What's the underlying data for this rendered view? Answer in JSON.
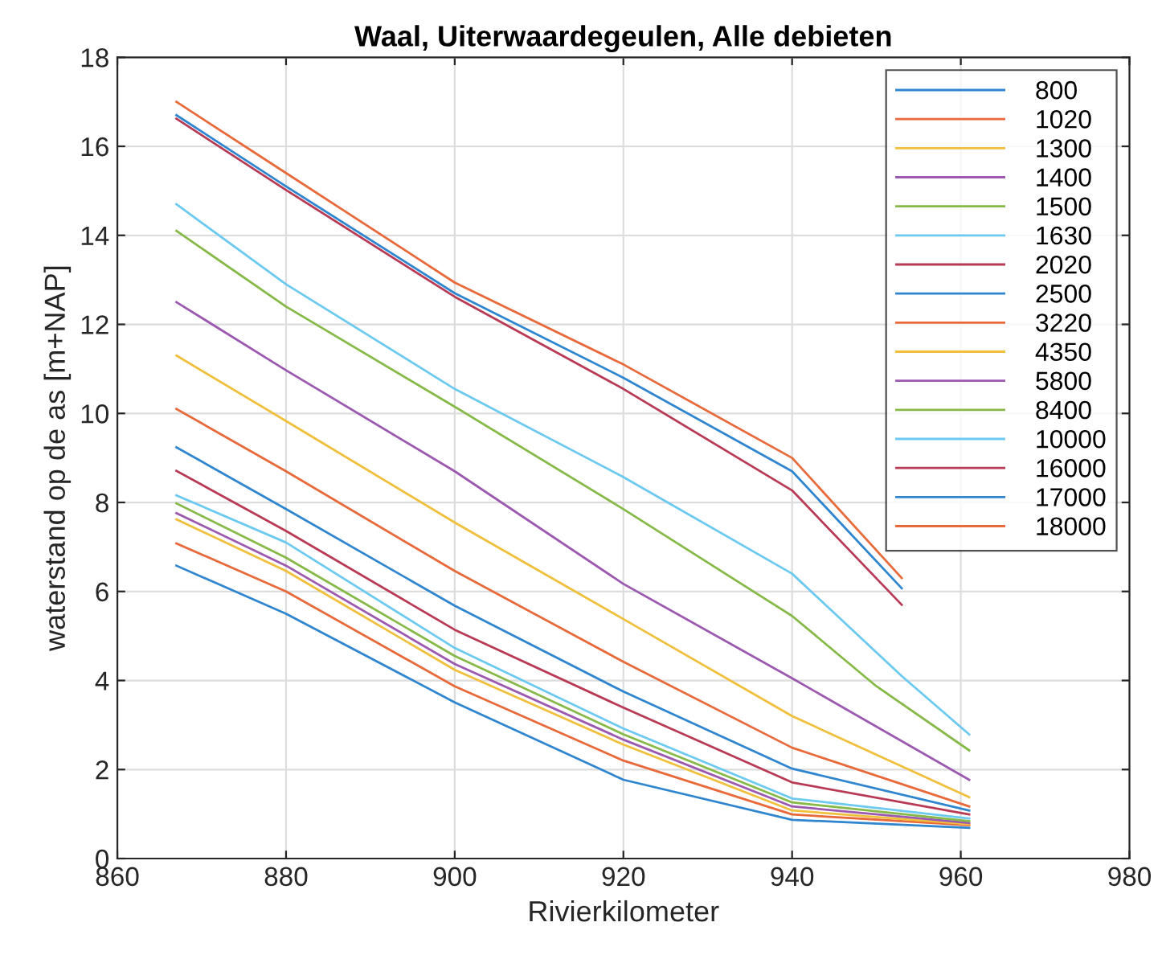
{
  "chart_data": {
    "type": "line",
    "title": "Waal, Uiterwaardegeulen, Alle debieten",
    "xlabel": "Rivierkilometer",
    "ylabel": "waterstand op de as [m+NAP]",
    "xlim": [
      860,
      980
    ],
    "xticks": [
      860,
      880,
      900,
      920,
      940,
      960,
      980
    ],
    "ylim": [
      0,
      18
    ],
    "yticks": [
      0,
      2,
      4,
      6,
      8,
      10,
      12,
      14,
      16,
      18
    ],
    "grid": true,
    "legend": "top right",
    "series": [
      {
        "name": "800",
        "color": "#2f86cf",
        "x": [
          867,
          880,
          900,
          920,
          940,
          961
        ],
        "values": [
          6.58,
          5.5,
          3.51,
          1.77,
          0.87,
          0.69
        ]
      },
      {
        "name": "1020",
        "color": "#e8693a",
        "x": [
          867,
          880,
          900,
          920,
          940,
          961
        ],
        "values": [
          7.08,
          6.0,
          3.87,
          2.2,
          0.99,
          0.75
        ]
      },
      {
        "name": "1300",
        "color": "#f0bf3c",
        "x": [
          867,
          880,
          900,
          920,
          940,
          961
        ],
        "values": [
          7.62,
          6.46,
          4.24,
          2.56,
          1.08,
          0.77
        ]
      },
      {
        "name": "1400",
        "color": "#9b59b0",
        "x": [
          867,
          880,
          900,
          920,
          940,
          961
        ],
        "values": [
          7.76,
          6.58,
          4.37,
          2.67,
          1.17,
          0.8
        ]
      },
      {
        "name": "1500",
        "color": "#86b947",
        "x": [
          867,
          880,
          900,
          920,
          940,
          961
        ],
        "values": [
          7.98,
          6.76,
          4.55,
          2.79,
          1.26,
          0.84
        ]
      },
      {
        "name": "1630",
        "color": "#6cc9f0",
        "x": [
          867,
          880,
          900,
          920,
          940,
          961
        ],
        "values": [
          8.16,
          7.1,
          4.73,
          2.92,
          1.35,
          0.9
        ]
      },
      {
        "name": "2020",
        "color": "#b83a55",
        "x": [
          867,
          880,
          900,
          920,
          940,
          961
        ],
        "values": [
          8.71,
          7.36,
          5.14,
          3.39,
          1.71,
          0.99
        ]
      },
      {
        "name": "2500",
        "color": "#2f86cf",
        "x": [
          867,
          880,
          900,
          920,
          940,
          961
        ],
        "values": [
          9.24,
          7.85,
          5.68,
          3.75,
          2.02,
          1.08
        ]
      },
      {
        "name": "3220",
        "color": "#e8693a",
        "x": [
          867,
          880,
          900,
          920,
          940,
          961
        ],
        "values": [
          10.1,
          8.7,
          6.46,
          4.42,
          2.49,
          1.17
        ]
      },
      {
        "name": "4350",
        "color": "#f0bf3c",
        "x": [
          867,
          880,
          900,
          920,
          940,
          961
        ],
        "values": [
          11.3,
          9.83,
          7.55,
          5.38,
          3.2,
          1.38
        ]
      },
      {
        "name": "5800",
        "color": "#9b59b0",
        "x": [
          867,
          880,
          900,
          920,
          940,
          961
        ],
        "values": [
          12.5,
          10.97,
          8.7,
          6.17,
          4.05,
          1.77
        ]
      },
      {
        "name": "8400",
        "color": "#86b947",
        "x": [
          867,
          880,
          900,
          920,
          940,
          950,
          961
        ],
        "values": [
          14.1,
          12.4,
          10.15,
          7.85,
          5.45,
          3.87,
          2.43
        ]
      },
      {
        "name": "10000",
        "color": "#6cc9f0",
        "x": [
          867,
          880,
          900,
          920,
          940,
          953,
          961
        ],
        "values": [
          14.7,
          12.9,
          10.55,
          8.57,
          6.4,
          4.1,
          2.79
        ]
      },
      {
        "name": "16000",
        "color": "#b83a55",
        "x": [
          867,
          880,
          900,
          920,
          940,
          953
        ],
        "values": [
          16.62,
          15.02,
          12.62,
          10.55,
          8.27,
          5.7
        ]
      },
      {
        "name": "17000",
        "color": "#2f86cf",
        "x": [
          867,
          880,
          900,
          920,
          940,
          953
        ],
        "values": [
          16.7,
          15.1,
          12.7,
          10.8,
          8.7,
          6.07
        ]
      },
      {
        "name": "18000",
        "color": "#e8693a",
        "x": [
          867,
          880,
          900,
          920,
          940,
          953
        ],
        "values": [
          17.0,
          15.4,
          12.94,
          11.1,
          9.0,
          6.3
        ]
      }
    ]
  }
}
